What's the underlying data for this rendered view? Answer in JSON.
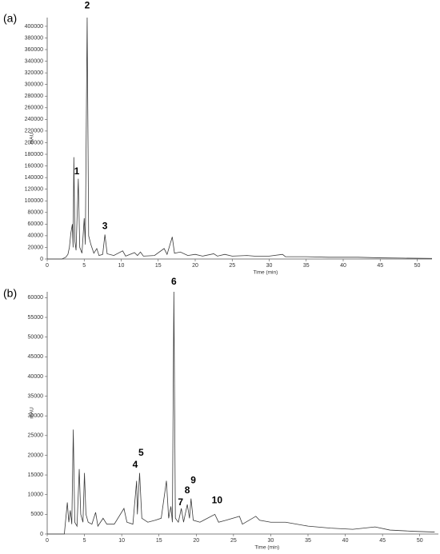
{
  "chart_data": [
    {
      "type": "line",
      "panel_label": "(a)",
      "y_label": "mAU",
      "x_label": "Time (min)",
      "xlim": [
        0,
        52
      ],
      "ylim": [
        0,
        415000
      ],
      "xticks": [
        0,
        5,
        10,
        15,
        20,
        25,
        30,
        35,
        40,
        45,
        50
      ],
      "yticks": [
        0,
        20000,
        40000,
        60000,
        80000,
        100000,
        120000,
        140000,
        160000,
        180000,
        200000,
        220000,
        240000,
        260000,
        280000,
        300000,
        320000,
        340000,
        360000,
        380000,
        400000
      ],
      "series": [
        {
          "color": "#3a3a3a",
          "x": [
            0,
            2,
            2.5,
            2.8,
            3.0,
            3.2,
            3.4,
            3.5,
            3.6,
            3.75,
            3.9,
            4.2,
            4.4,
            4.7,
            5.0,
            5.15,
            5.4,
            5.6,
            5.9,
            6.3,
            6.7,
            7.0,
            7.5,
            7.8,
            8.1,
            9,
            10.2,
            10.6,
            11.8,
            12.2,
            12.6,
            13,
            14.5,
            15.8,
            16.2,
            16.9,
            17.2,
            18,
            19,
            20,
            21,
            22.5,
            23,
            24,
            25,
            27,
            28,
            30,
            31.8,
            32.2,
            35,
            38,
            42,
            45,
            48,
            52
          ],
          "values": [
            0,
            0,
            3000,
            8000,
            20000,
            45000,
            60000,
            20000,
            175000,
            30000,
            15000,
            138000,
            20000,
            10000,
            70000,
            25000,
            415000,
            40000,
            25000,
            10000,
            18000,
            6000,
            8000,
            42000,
            9000,
            6000,
            14000,
            5000,
            11000,
            6000,
            12000,
            5000,
            6000,
            18000,
            8000,
            38000,
            10000,
            12000,
            6000,
            8000,
            5000,
            9000,
            5000,
            8000,
            5000,
            6000,
            5000,
            5000,
            8000,
            4000,
            4000,
            3000,
            3000,
            2000,
            1500,
            1000
          ]
        }
      ],
      "annotations": [
        {
          "text": "1",
          "x": 4.0,
          "y": 150000
        },
        {
          "text": "2",
          "x": 5.4,
          "y": 435000
        },
        {
          "text": "3",
          "x": 7.8,
          "y": 56000
        }
      ]
    },
    {
      "type": "line",
      "panel_label": "(b)",
      "y_label": "mAU",
      "x_label": "Time (min)",
      "xlim": [
        0,
        52.5
      ],
      "ylim": [
        0,
        61500
      ],
      "xticks": [
        0,
        5,
        10,
        15,
        20,
        25,
        30,
        35,
        40,
        45,
        50
      ],
      "yticks": [
        0,
        5000,
        10000,
        15000,
        20000,
        25000,
        30000,
        35000,
        40000,
        45000,
        50000,
        55000,
        60000
      ],
      "series": [
        {
          "color": "#3a3a3a",
          "x": [
            0,
            2.3,
            2.5,
            2.7,
            2.9,
            3.1,
            3.3,
            3.5,
            3.7,
            4.0,
            4.3,
            4.5,
            4.8,
            5.0,
            5.2,
            5.5,
            6.0,
            6.5,
            6.8,
            7.5,
            8.0,
            9,
            10.3,
            10.7,
            11.5,
            12.0,
            12.1,
            12.4,
            12.7,
            13.5,
            14.5,
            15.3,
            16.0,
            16.3,
            16.6,
            16.8,
            17.0,
            17.2,
            17.6,
            18.0,
            18.3,
            18.8,
            19.1,
            19.3,
            19.6,
            20.5,
            21,
            22.5,
            23,
            24,
            25.8,
            26.2,
            28,
            28.5,
            30,
            32,
            35,
            38,
            41,
            44,
            46,
            49,
            52
          ],
          "values": [
            0,
            0,
            4000,
            8000,
            3000,
            6000,
            2500,
            26500,
            3000,
            2000,
            16500,
            5000,
            3000,
            15500,
            5000,
            3000,
            2500,
            5500,
            2000,
            4000,
            2500,
            2500,
            6500,
            3000,
            2500,
            13500,
            5000,
            15500,
            4000,
            3000,
            3500,
            4000,
            13500,
            4000,
            7000,
            3000,
            61500,
            4000,
            3000,
            6500,
            3000,
            7500,
            4000,
            9000,
            3500,
            3000,
            3500,
            5000,
            3000,
            3500,
            4500,
            2500,
            4500,
            3500,
            3000,
            3000,
            2000,
            1500,
            1200,
            1800,
            1000,
            700,
            500
          ]
        }
      ],
      "annotations": [
        {
          "text": "4",
          "x": 11.8,
          "y": 17500
        },
        {
          "text": "5",
          "x": 12.6,
          "y": 20500
        },
        {
          "text": "6",
          "x": 17.0,
          "y": 64000
        },
        {
          "text": "7",
          "x": 17.9,
          "y": 8000
        },
        {
          "text": "8",
          "x": 18.8,
          "y": 11000
        },
        {
          "text": "9",
          "x": 19.6,
          "y": 13500
        },
        {
          "text": "10",
          "x": 22.8,
          "y": 8500
        }
      ]
    }
  ]
}
